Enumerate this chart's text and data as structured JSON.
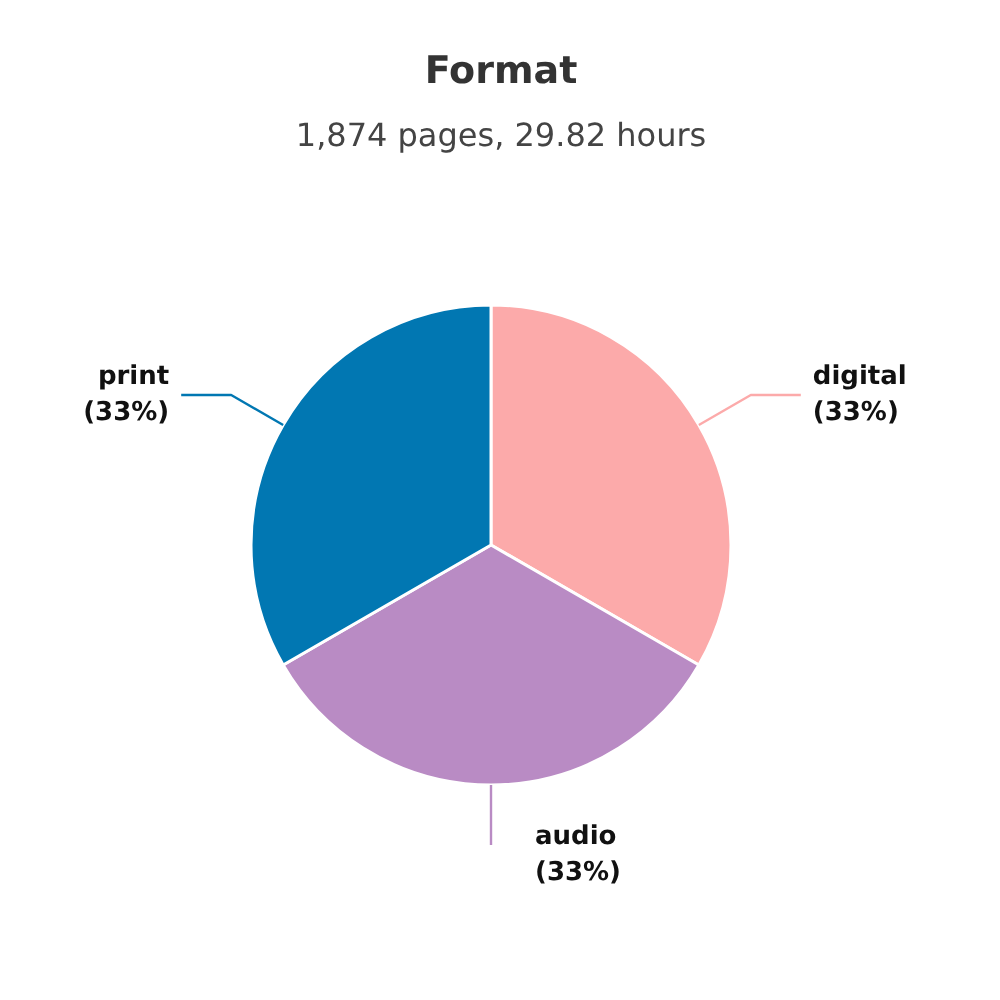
{
  "chart_data": {
    "type": "pie",
    "title": "Format",
    "subtitle": "1,874 pages, 29.82 hours",
    "categories": [
      "digital",
      "audio",
      "print"
    ],
    "values": [
      33.33,
      33.33,
      33.33
    ],
    "colors": [
      "#fcaaaa",
      "#b98bc4",
      "#0177b2"
    ],
    "value_labels": [
      "(33%)",
      "(33%)",
      "(33%)"
    ]
  }
}
